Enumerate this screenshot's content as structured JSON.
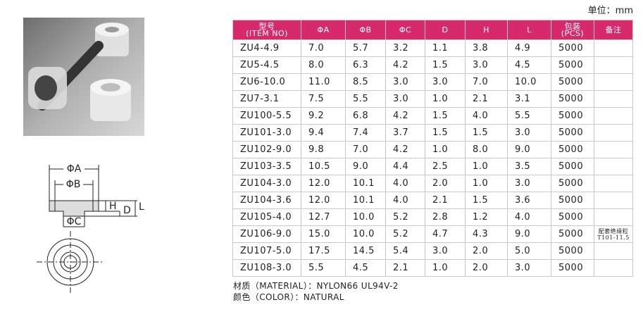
{
  "unit": "单位：mm",
  "diagram": {
    "labels": [
      "ΦA",
      "ΦB",
      "H",
      "D",
      "L",
      "ΦC"
    ]
  },
  "table": {
    "header": [
      [
        "型号",
        "(ITEM NO)"
      ],
      "ΦA",
      "ΦB",
      "ΦC",
      "D",
      "H",
      "L",
      [
        "包装",
        "(PCS)"
      ],
      "备注"
    ],
    "rows": [
      [
        "ZU4-4.9",
        "7.0",
        "5.7",
        "3.2",
        "1.1",
        "3.8",
        "4.9",
        "5000"
      ],
      [
        "ZU5-4.5",
        "8.0",
        "6.3",
        "4.2",
        "1.5",
        "3.0",
        "4.5",
        "5000"
      ],
      [
        "ZU6-10.0",
        "11.0",
        "8.5",
        "3.0",
        "3.0",
        "7.0",
        "10.0",
        "5000"
      ],
      [
        "ZU7-3.1",
        "7.5",
        "5.5",
        "3.0",
        "1.0",
        "2.1",
        "3.1",
        "5000"
      ],
      [
        "ZU100-5.5",
        "9.2",
        "6.8",
        "4.2",
        "1.5",
        "4.0",
        "5.5",
        "5000"
      ],
      [
        "ZU101-3.0",
        "9.4",
        "7.4",
        "3.7",
        "1.5",
        "1.5",
        "3.0",
        "5000"
      ],
      [
        "ZU102-9.0",
        "9.8",
        "7.0",
        "4.2",
        "1.0",
        "8.0",
        "9.0",
        "5000"
      ],
      [
        "ZU103-3.5",
        "10.5",
        "9.0",
        "4.4",
        "2.5",
        "1.0",
        "3.5",
        "5000"
      ],
      [
        "ZU104-3.0",
        "12.0",
        "10.1",
        "4.0",
        "2.0",
        "1.0",
        "3.0",
        "5000"
      ],
      [
        "ZU104-3.6",
        "12.0",
        "10.1",
        "4.0",
        "2.1",
        "1.5",
        "3.6",
        "5000"
      ],
      [
        "ZU105-4.0",
        "12.7",
        "10.0",
        "5.2",
        "2.8",
        "1.2",
        "4.0",
        "5000"
      ],
      [
        "ZU106-9.0",
        "15.0",
        "10.0",
        "5.2",
        "4.7",
        "4.3",
        "9.0",
        "5000",
        [
          "配套绝缘粒",
          "T101-11.5"
        ]
      ],
      [
        "ZU107-5.0",
        "17.5",
        "14.5",
        "5.4",
        "3.0",
        "2.0",
        "5.0",
        "5000"
      ],
      [
        "ZU108-3.0",
        "5.5",
        "4.5",
        "2.1",
        "1.0",
        "2.0",
        "3.0",
        "5000"
      ]
    ]
  },
  "notes": [
    "材质（MATERIAL）：NYLON66 UL94V-2",
    "颜色（COLOR）：NATURAL"
  ]
}
